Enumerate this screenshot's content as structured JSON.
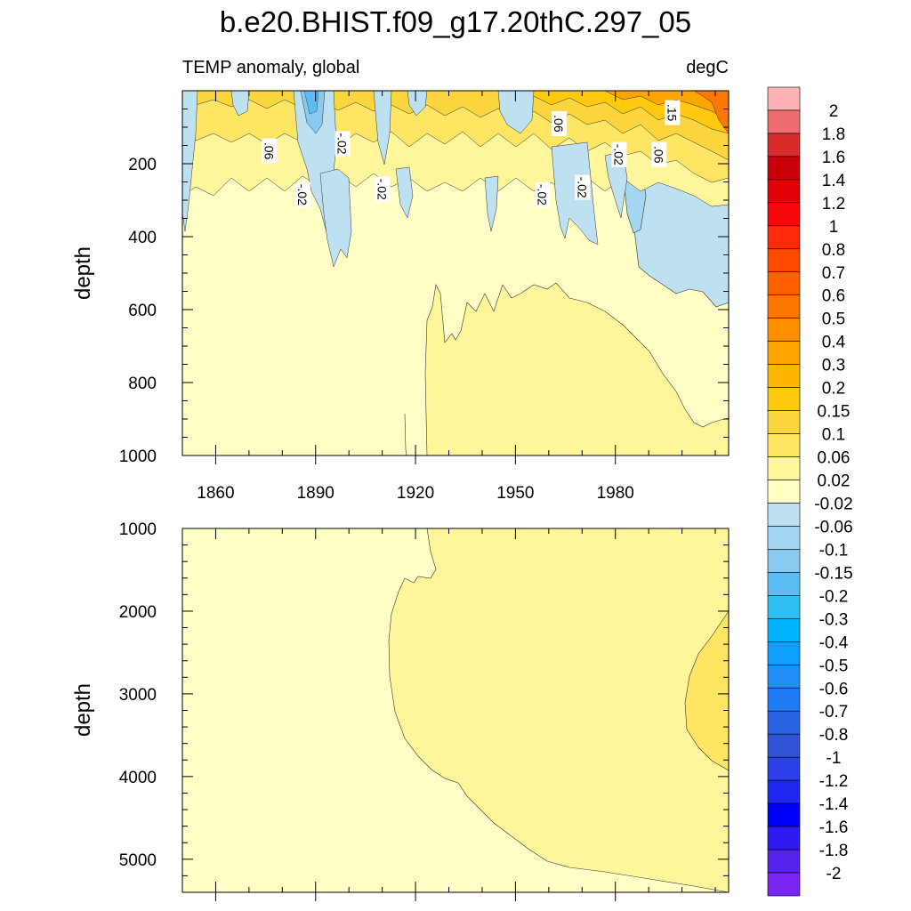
{
  "title": "b.e20.BHIST.f09_g17.20thC.297_05",
  "subtitle_left": "TEMP anomaly, global",
  "subtitle_right": "degC",
  "chart_data": [
    {
      "type": "heatmap",
      "panel": "upper",
      "variable": "TEMP anomaly, global",
      "units": "degC",
      "xlabel": "",
      "ylabel": "depth",
      "xlim": [
        1850,
        2014
      ],
      "ylim": [
        0,
        1000
      ],
      "y_inverted": true,
      "x_ticks": [
        1860,
        1890,
        1920,
        1950,
        1980
      ],
      "y_ticks": [
        200,
        400,
        600,
        800,
        1000
      ],
      "contour_labels": [
        {
          "text": ".06",
          "x": 1876,
          "y": 165
        },
        {
          "text": "-.02",
          "x": 1886,
          "y": 285
        },
        {
          "text": "-.02",
          "x": 1898,
          "y": 145
        },
        {
          "text": "-.02",
          "x": 1910,
          "y": 270
        },
        {
          "text": "-.02",
          "x": 1958,
          "y": 285
        },
        {
          "text": ".06",
          "x": 1963,
          "y": 90
        },
        {
          "text": "-.02",
          "x": 1970,
          "y": 265
        },
        {
          "text": "-.02",
          "x": 1981,
          "y": 175
        },
        {
          "text": ".06",
          "x": 1993,
          "y": 175
        },
        {
          "text": ".15",
          "x": 1997,
          "y": 60
        }
      ],
      "regions": [
        {
          "level": "0.02 to 0.06",
          "x": [
            1920,
            2014
          ],
          "y": [
            540,
            1000
          ],
          "description": "deep warming lobe"
        },
        {
          "level": "-0.06 to -0.02",
          "x": [
            1975,
            2014
          ],
          "y": [
            180,
            600
          ],
          "description": "late-period cooling"
        },
        {
          "level": "0.1 to 0.6",
          "x": [
            1850,
            2014
          ],
          "y": [
            0,
            250
          ],
          "description": "variable near-surface anomalies, strongest after 1990"
        }
      ]
    },
    {
      "type": "heatmap",
      "panel": "lower",
      "variable": "TEMP anomaly, global",
      "units": "degC",
      "xlabel": "",
      "ylabel": "depth",
      "xlim": [
        1850,
        2014
      ],
      "ylim": [
        1000,
        5400
      ],
      "y_inverted": true,
      "y_ticks": [
        1000,
        2000,
        3000,
        4000,
        5000
      ],
      "regions": [
        {
          "level": "0.02 to 0.06",
          "x": [
            1910,
            2014
          ],
          "y": [
            1000,
            5400
          ],
          "description": "warm deep interior"
        },
        {
          "level": "0.06 to 0.1",
          "x": [
            1992,
            2014
          ],
          "y": [
            2000,
            3900
          ],
          "description": "abyssal maximum"
        }
      ]
    }
  ],
  "colorbar": {
    "labels": [
      "2",
      "1.8",
      "1.6",
      "1.4",
      "1.2",
      "1",
      "0.8",
      "0.7",
      "0.6",
      "0.5",
      "0.4",
      "0.3",
      "0.2",
      "0.15",
      "0.1",
      "0.06",
      "0.02",
      "-0.02",
      "-0.06",
      "-0.1",
      "-0.15",
      "-0.2",
      "-0.3",
      "-0.4",
      "-0.5",
      "-0.6",
      "-0.7",
      "-0.8",
      "-1",
      "-1.2",
      "-1.4",
      "-1.6",
      "-1.8",
      "-2"
    ],
    "colors": [
      "#fbb3b4",
      "#ee6d6e",
      "#d72c2b",
      "#c90009",
      "#e10008",
      "#f70909",
      "#ff2a0a",
      "#ff4a00",
      "#ff6100",
      "#fe7800",
      "#fe8e00",
      "#fea500",
      "#ffb702",
      "#ffc90f",
      "#fad53d",
      "#fee564",
      "#fff59b",
      "#ffffc6",
      "#bee1f2",
      "#a5d6f2",
      "#8bcaf0",
      "#5bbdf2",
      "#2ebff3",
      "#00b4ff",
      "#0fa0ff",
      "#208df9",
      "#1f7af5",
      "#2964e6",
      "#3154d6",
      "#2a40e6",
      "#1f26ed",
      "#0000ff",
      "#2f18f0",
      "#5623ec",
      "#7b26f0"
    ]
  }
}
